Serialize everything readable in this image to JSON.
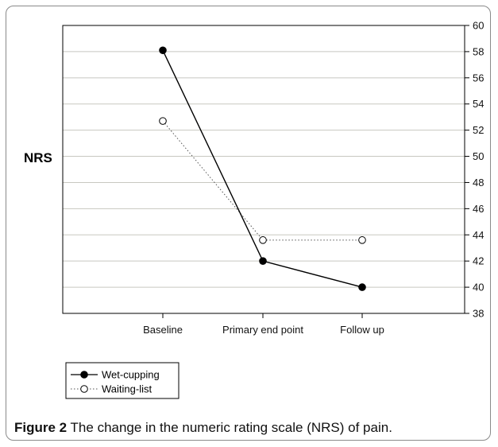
{
  "chart_data": {
    "type": "line",
    "title": "",
    "xlabel": "",
    "ylabel": "NRS",
    "categories": [
      "Baseline",
      "Primary end point",
      "Follow up"
    ],
    "ylim": [
      38,
      60
    ],
    "yticks": [
      38,
      40,
      42,
      44,
      46,
      48,
      50,
      52,
      54,
      56,
      58,
      60
    ],
    "y_axis_side": "right",
    "grid": "horizontal",
    "legend_position": "bottom-left",
    "series": [
      {
        "name": "Wet-cupping",
        "values": [
          58.1,
          42.0,
          40.0
        ],
        "marker": "filled-circle",
        "line": "solid",
        "color": "#000000"
      },
      {
        "name": "Waiting-list",
        "values": [
          52.7,
          43.6,
          43.6
        ],
        "marker": "open-circle",
        "line": "dotted",
        "color": "#555555"
      }
    ]
  },
  "caption": {
    "label": "Figure 2",
    "text": "The change in the numeric rating scale (NRS) of pain."
  }
}
